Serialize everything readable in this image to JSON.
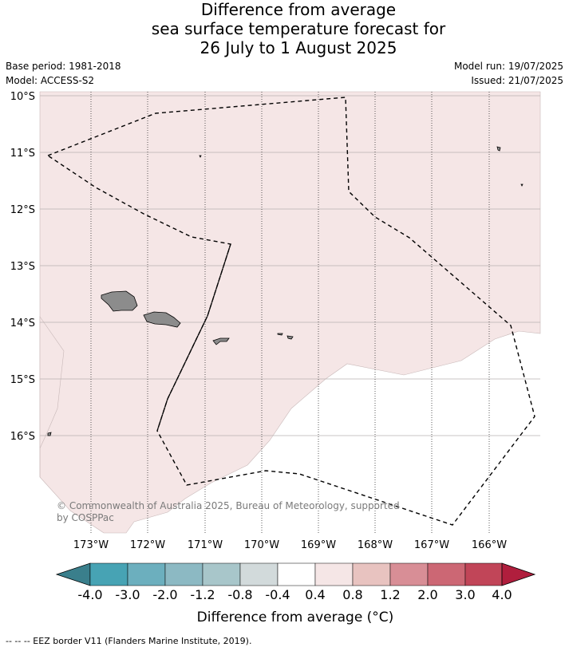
{
  "title": {
    "line1": "Difference from average",
    "line2": "sea surface temperature forecast for",
    "line3": "26 July to 1 August 2025"
  },
  "meta": {
    "base_period": "Base period: 1981-2018",
    "model": "Model: ACCESS-S2",
    "model_run": "Model run: 19/07/2025",
    "issued": "Issued: 21/07/2025"
  },
  "map": {
    "lat_labels": [
      "10°S",
      "11°S",
      "12°S",
      "13°S",
      "14°S",
      "15°S",
      "16°S"
    ],
    "lon_labels": [
      "173°W",
      "172°W",
      "171°W",
      "170°W",
      "169°W",
      "168°W",
      "167°W",
      "166°W"
    ],
    "anomaly_fill_color": "#f5e6e6",
    "land_color": "#8c8c8c",
    "copyright": "© Commonwealth of Australia 2025, Bureau of Meteorology, supported by COSPPac"
  },
  "colorbar": {
    "title": "Difference from average (°C)",
    "tick_labels": [
      "-4.0",
      "-3.0",
      "-2.0",
      "-1.2",
      "-0.8",
      "-0.4",
      "0.4",
      "0.8",
      "1.2",
      "2.0",
      "3.0",
      "4.0"
    ],
    "colors": [
      "#3a7f8c",
      "#47a3b4",
      "#6cafbe",
      "#8cb9c3",
      "#a8c6ca",
      "#d2dadb",
      "#ffffff",
      "#f5e6e6",
      "#e8c3c0",
      "#d88e96",
      "#cc6774",
      "#c14558",
      "#b01e3d"
    ]
  },
  "footer": {
    "legend": "--  --  -- EEZ border V11 (Flanders Marine Institute, 2019)."
  }
}
